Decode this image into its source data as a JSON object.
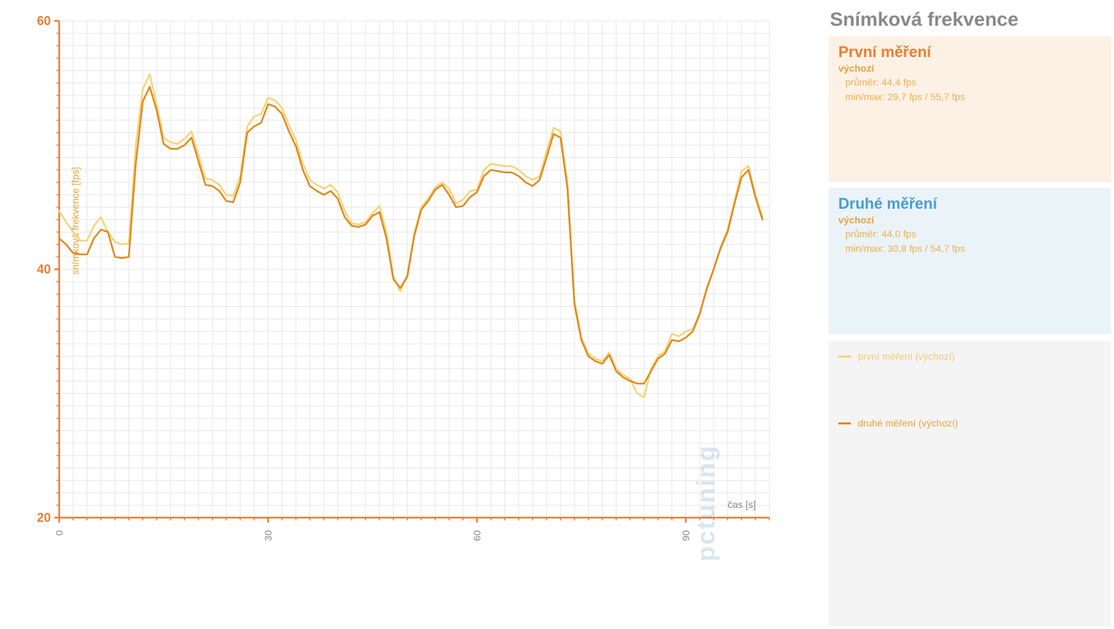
{
  "chart": {
    "type": "line",
    "background_color": "#ffffff",
    "grid_color": "#e6e6e6",
    "axis_color": "#ed7d31",
    "y_axis": {
      "label": "snímková frekvence [fps]",
      "label_color": "#e8a33c",
      "label_fontsize": 14,
      "min": 20,
      "max": 60,
      "major_ticks": [
        20,
        40,
        60
      ],
      "minor_tick_step": 1,
      "major_label_color": "#ed7d31",
      "major_label_fontsize": 18
    },
    "x_axis": {
      "label": "čas [s]",
      "label_color": "#888888",
      "label_fontsize": 14,
      "min": 0,
      "max": 102,
      "major_ticks": [
        0,
        30,
        60,
        90
      ],
      "minor_tick_step": 2
    },
    "series": [
      {
        "name": "první měření (výchozí)",
        "color": "#f4d47a",
        "line_width": 2.5,
        "x": [
          0,
          1,
          2,
          3,
          4,
          5,
          6,
          7,
          8,
          9,
          10,
          11,
          12,
          13,
          14,
          15,
          16,
          17,
          18,
          19,
          20,
          21,
          22,
          23,
          24,
          25,
          26,
          27,
          28,
          29,
          30,
          31,
          32,
          33,
          34,
          35,
          36,
          37,
          38,
          39,
          40,
          41,
          42,
          43,
          44,
          45,
          46,
          47,
          48,
          49,
          50,
          51,
          52,
          53,
          54,
          55,
          56,
          57,
          58,
          59,
          60,
          61,
          62,
          63,
          64,
          65,
          66,
          67,
          68,
          69,
          70,
          71,
          72,
          73,
          74,
          75,
          76,
          77,
          78,
          79,
          80,
          81,
          82,
          83,
          84,
          85,
          86,
          87,
          88,
          89,
          90,
          91,
          92,
          93,
          94,
          95,
          96,
          97,
          98,
          99,
          100,
          101
        ],
        "y": [
          44.7,
          43.8,
          43.0,
          42.3,
          42.3,
          43.5,
          44.2,
          43.0,
          42.2,
          42.0,
          42.1,
          50.0,
          54.5,
          55.7,
          53.3,
          50.6,
          50.2,
          50.1,
          50.5,
          51.1,
          49.2,
          47.3,
          47.2,
          46.8,
          46.0,
          45.9,
          47.5,
          51.5,
          52.3,
          52.5,
          53.8,
          53.6,
          53.0,
          51.6,
          50.4,
          48.5,
          47.2,
          46.8,
          46.5,
          46.8,
          46.2,
          44.7,
          43.7,
          43.6,
          43.8,
          44.5,
          45.1,
          43.0,
          39.4,
          38.2,
          39.6,
          42.9,
          45.0,
          45.7,
          46.6,
          47.0,
          46.5,
          45.3,
          45.6,
          46.3,
          46.4,
          48.0,
          48.5,
          48.4,
          48.3,
          48.3,
          48.0,
          47.5,
          47.2,
          47.5,
          49.5,
          51.4,
          51.1,
          47.0,
          37.5,
          34.5,
          33.2,
          32.8,
          32.6,
          33.3,
          32.0,
          31.5,
          31.2,
          30.0,
          29.7,
          32.0,
          33.0,
          33.4,
          34.8,
          34.6,
          35.0,
          35.2,
          36.5,
          38.5,
          40.0,
          41.8,
          43.2,
          45.5,
          47.9,
          48.3,
          46.0,
          44.2
        ]
      },
      {
        "name": "druhé měření (výchozí)",
        "color": "#e08a1e",
        "line_width": 2.5,
        "x": [
          0,
          1,
          2,
          3,
          4,
          5,
          6,
          7,
          8,
          9,
          10,
          11,
          12,
          13,
          14,
          15,
          16,
          17,
          18,
          19,
          20,
          21,
          22,
          23,
          24,
          25,
          26,
          27,
          28,
          29,
          30,
          31,
          32,
          33,
          34,
          35,
          36,
          37,
          38,
          39,
          40,
          41,
          42,
          43,
          44,
          45,
          46,
          47,
          48,
          49,
          50,
          51,
          52,
          53,
          54,
          55,
          56,
          57,
          58,
          59,
          60,
          61,
          62,
          63,
          64,
          65,
          66,
          67,
          68,
          69,
          70,
          71,
          72,
          73,
          74,
          75,
          76,
          77,
          78,
          79,
          80,
          81,
          82,
          83,
          84,
          85,
          86,
          87,
          88,
          89,
          90,
          91,
          92,
          93,
          94,
          95,
          96,
          97,
          98,
          99,
          100,
          101
        ],
        "y": [
          42.5,
          42.0,
          41.3,
          41.2,
          41.2,
          42.5,
          43.2,
          43.0,
          41.0,
          40.9,
          41.0,
          48.5,
          53.5,
          54.7,
          52.8,
          50.1,
          49.7,
          49.7,
          50.0,
          50.6,
          48.7,
          46.8,
          46.7,
          46.3,
          45.5,
          45.4,
          47.0,
          51.0,
          51.5,
          51.8,
          53.3,
          53.1,
          52.5,
          51.1,
          49.9,
          48.0,
          46.7,
          46.3,
          46.0,
          46.3,
          45.7,
          44.2,
          43.5,
          43.4,
          43.6,
          44.3,
          44.6,
          42.5,
          39.2,
          38.5,
          39.4,
          42.7,
          44.8,
          45.5,
          46.4,
          46.8,
          46.0,
          45.0,
          45.1,
          45.8,
          46.2,
          47.5,
          48.0,
          47.9,
          47.8,
          47.8,
          47.5,
          47.0,
          46.7,
          47.2,
          49.0,
          50.9,
          50.6,
          46.5,
          37.2,
          34.3,
          33.0,
          32.6,
          32.4,
          33.1,
          31.8,
          31.3,
          31.0,
          30.8,
          30.8,
          31.8,
          32.8,
          33.2,
          34.3,
          34.2,
          34.5,
          35.0,
          36.4,
          38.4,
          40.0,
          41.7,
          43.0,
          45.3,
          47.4,
          48.0,
          45.8,
          44.0
        ]
      }
    ],
    "watermark": "pctuning"
  },
  "sidebar": {
    "title": "Snímková frekvence",
    "panel1": {
      "title": "První měření",
      "subtitle": "výchozí",
      "avg": "průměr: 44,4 fps",
      "minmax": "min/max: 29,7 fps / 55,7 fps"
    },
    "panel2": {
      "title": "Druhé měření",
      "subtitle": "výchozí",
      "avg": "průměr: 44,0 fps",
      "minmax": "min/max: 30,8 fps / 54,7 fps"
    },
    "legend": {
      "item1": "první měření (výchozí)",
      "item1_color": "#f4d47a",
      "item2": "druhé měření (výchozí)",
      "item2_color": "#e08a1e"
    }
  }
}
